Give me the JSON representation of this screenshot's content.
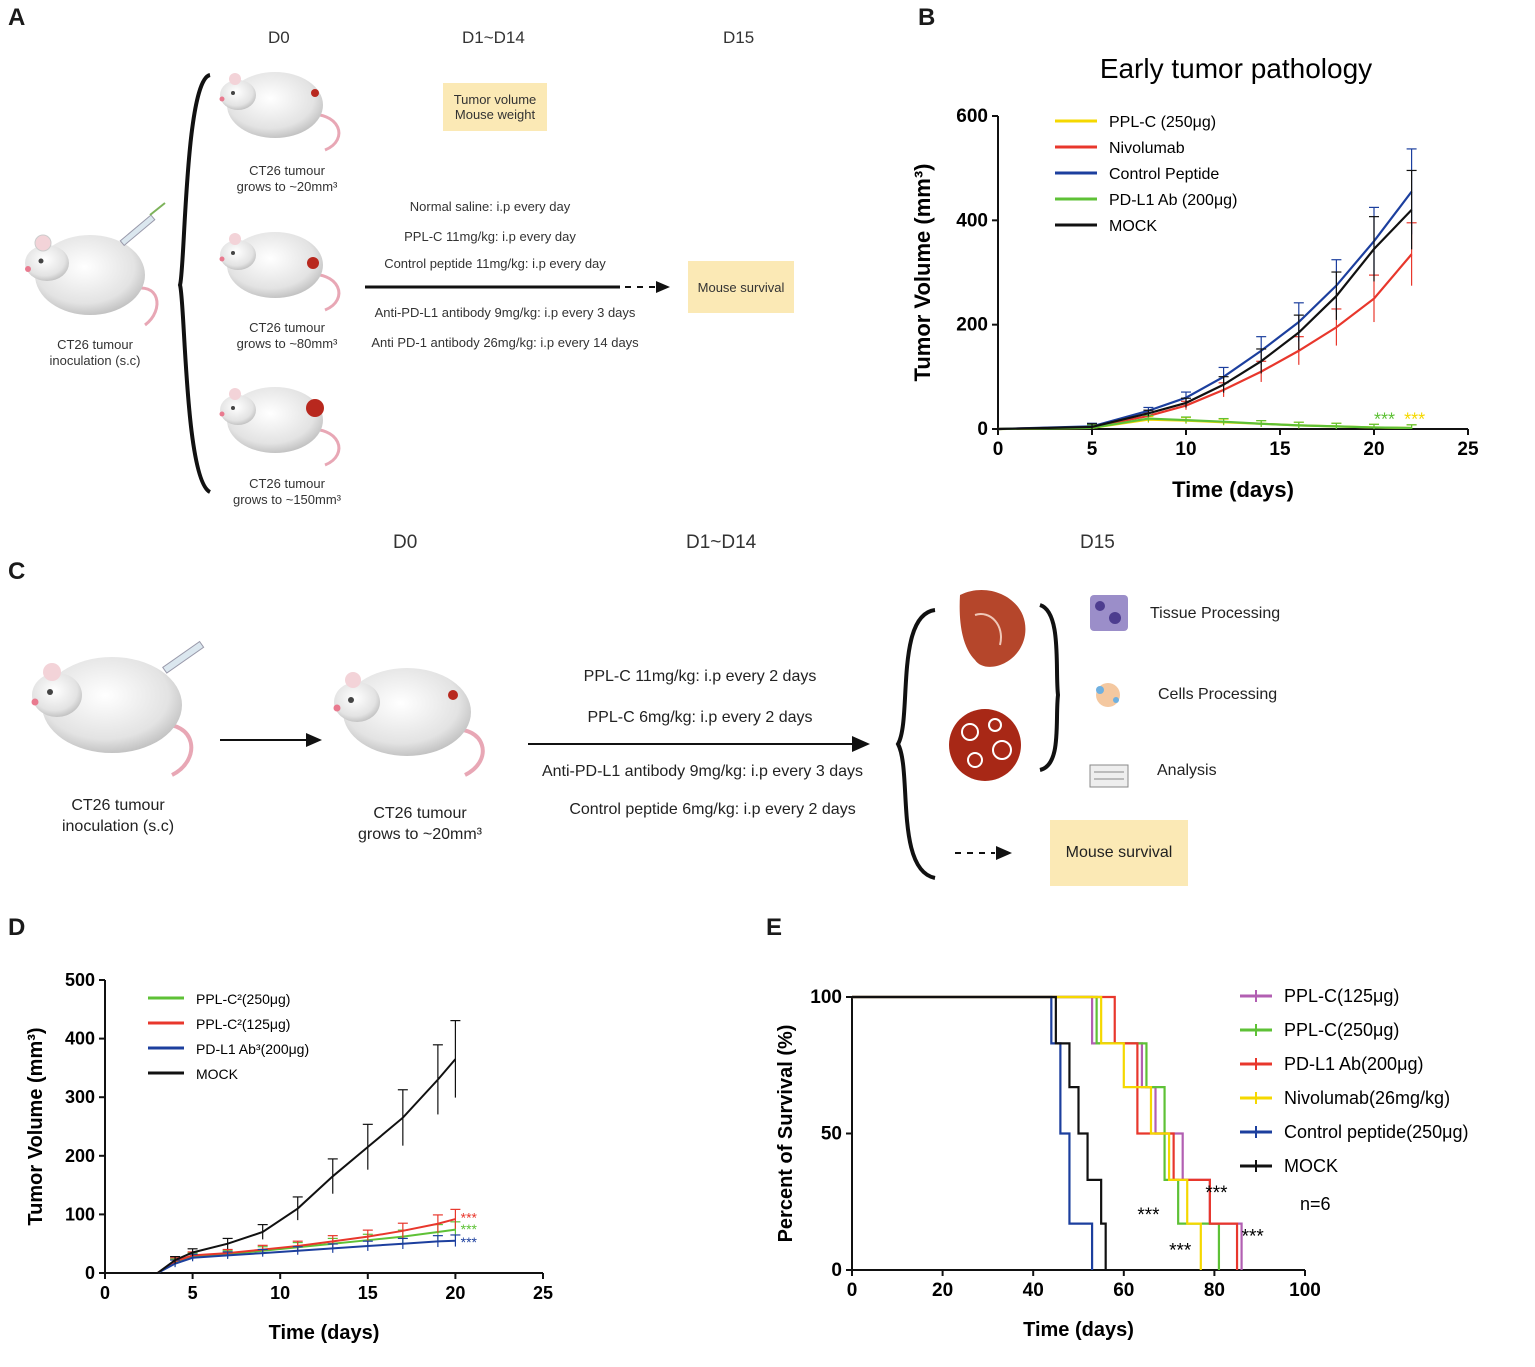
{
  "panelA": {
    "letter": "A",
    "days": [
      "D0",
      "D1~D14",
      "D15"
    ],
    "inoculation": [
      "CT26 tumour",
      "inoculation (s.c)"
    ],
    "groups": [
      [
        "CT26 tumour",
        "grows to ~20mm³"
      ],
      [
        "CT26 tumour",
        "grows to ~80mm³"
      ],
      [
        "CT26 tumour",
        "grows to ~150mm³"
      ]
    ],
    "measure_box": [
      "Tumor volume",
      "Mouse weight"
    ],
    "treatments": [
      "Normal saline: i.p every day",
      "PPL-C 11mg/kg: i.p every day",
      "Control peptide 11mg/kg: i.p every day",
      "Anti-PD-L1 antibody 9mg/kg: i.p every 3 days",
      "Anti PD-1 antibody 26mg/kg: i.p every 14 days"
    ],
    "survival_box": "Mouse survival"
  },
  "panelC": {
    "letter": "C",
    "days": [
      "D0",
      "D1~D14",
      "D15"
    ],
    "inoculation": [
      "CT26 tumour",
      "inoculation (s.c)"
    ],
    "grown": [
      "CT26 tumour",
      "grows to ~20mm³"
    ],
    "treatments": [
      "PPL-C 11mg/kg: i.p every 2 days",
      "PPL-C 6mg/kg: i.p every 2 days",
      "Anti-PD-L1 antibody 9mg/kg: i.p every 3 days",
      "Control peptide 6mg/kg: i.p every 2 days"
    ],
    "processing": [
      "Tissue Processing",
      "Cells Processing",
      "Analysis"
    ],
    "survival_box": "Mouse survival"
  },
  "chart_data": [
    {
      "panel": "B",
      "type": "line",
      "title": "Early tumor pathology",
      "xlabel": "Time (days)",
      "ylabel": "Tumor Volume (mm³)",
      "xlim": [
        0,
        25
      ],
      "ylim": [
        0,
        600
      ],
      "xticks": [
        0,
        5,
        10,
        15,
        20,
        25
      ],
      "yticks": [
        0,
        200,
        400,
        600
      ],
      "legend_position": "top-left",
      "series": [
        {
          "name": "PPL-C (250μg)",
          "color": "#f5d800",
          "x": [
            0,
            5,
            8,
            10,
            12,
            14,
            16,
            18,
            20,
            22
          ],
          "y": [
            0,
            2,
            18,
            16,
            13,
            10,
            7,
            5,
            3,
            2
          ]
        },
        {
          "name": "Nivolumab",
          "color": "#e8372c",
          "x": [
            0,
            5,
            8,
            10,
            12,
            14,
            16,
            18,
            20,
            22
          ],
          "y": [
            0,
            4,
            25,
            45,
            75,
            110,
            150,
            195,
            250,
            335
          ]
        },
        {
          "name": "Control Peptide",
          "color": "#1c3f9e",
          "x": [
            0,
            5,
            8,
            10,
            12,
            14,
            16,
            18,
            20,
            22
          ],
          "y": [
            0,
            5,
            35,
            60,
            100,
            150,
            205,
            275,
            360,
            455
          ]
        },
        {
          "name": "PD-L1 Ab (200μg)",
          "color": "#5ec136",
          "x": [
            0,
            5,
            8,
            10,
            12,
            14,
            16,
            18,
            20,
            22
          ],
          "y": [
            0,
            2,
            20,
            17,
            14,
            10,
            7,
            5,
            3,
            2
          ]
        },
        {
          "name": "MOCK",
          "color": "#111111",
          "x": [
            0,
            5,
            8,
            10,
            12,
            14,
            16,
            18,
            20,
            22
          ],
          "y": [
            0,
            4,
            30,
            50,
            85,
            130,
            185,
            255,
            345,
            420
          ]
        }
      ],
      "annotations": [
        {
          "text": "***",
          "color": "#5ec136"
        },
        {
          "text": "***",
          "color": "#f5d800"
        }
      ]
    },
    {
      "panel": "D",
      "type": "line",
      "title": "",
      "xlabel": "Time (days)",
      "ylabel": "Tumor Volume (mm³)",
      "xlim": [
        0,
        25
      ],
      "ylim": [
        0,
        500
      ],
      "xticks": [
        0,
        5,
        10,
        15,
        20,
        25
      ],
      "yticks": [
        0,
        100,
        200,
        300,
        400,
        500
      ],
      "legend_position": "top-left",
      "series": [
        {
          "name": "PPL-C²(250μg)",
          "color": "#5ec136",
          "x": [
            0,
            3,
            4,
            5,
            7,
            9,
            11,
            13,
            15,
            17,
            19,
            20
          ],
          "y": [
            0,
            0,
            18,
            28,
            32,
            38,
            44,
            50,
            56,
            62,
            70,
            74
          ]
        },
        {
          "name": "PPL-C²(125μg)",
          "color": "#e8372c",
          "x": [
            0,
            3,
            4,
            5,
            7,
            9,
            11,
            13,
            15,
            17,
            19,
            20
          ],
          "y": [
            0,
            0,
            20,
            30,
            34,
            40,
            46,
            54,
            62,
            72,
            84,
            92
          ]
        },
        {
          "name": "PD-L1 Ab³(200μg)",
          "color": "#1c3f9e",
          "x": [
            0,
            3,
            4,
            5,
            7,
            9,
            11,
            13,
            15,
            17,
            19,
            20
          ],
          "y": [
            0,
            0,
            16,
            26,
            30,
            34,
            38,
            42,
            46,
            50,
            54,
            55
          ]
        },
        {
          "name": "MOCK",
          "color": "#111111",
          "x": [
            0,
            3,
            4,
            5,
            7,
            9,
            11,
            13,
            15,
            17,
            19,
            20
          ],
          "y": [
            0,
            0,
            22,
            35,
            50,
            70,
            110,
            165,
            215,
            265,
            330,
            365
          ]
        }
      ],
      "annotations": [
        {
          "text": "***",
          "color": "#e8372c"
        },
        {
          "text": "***",
          "color": "#5ec136"
        },
        {
          "text": "***",
          "color": "#1c3f9e"
        }
      ]
    },
    {
      "panel": "E",
      "type": "step",
      "title": "",
      "xlabel": "Time (days)",
      "ylabel": "Percent of Survival (%)",
      "xlim": [
        0,
        100
      ],
      "ylim": [
        0,
        100
      ],
      "xticks": [
        0,
        20,
        40,
        60,
        80,
        100
      ],
      "yticks": [
        0,
        50,
        100
      ],
      "legend_position": "right",
      "n_note": "n=6",
      "series": [
        {
          "name": "PPL-C(125μg)",
          "color": "#b25fb2",
          "x": [
            0,
            53,
            64,
            67,
            73,
            79,
            86
          ],
          "y": [
            100,
            83,
            67,
            50,
            33,
            17,
            0
          ]
        },
        {
          "name": "PPL-C(250μg)",
          "color": "#5ec136",
          "x": [
            0,
            54,
            65,
            69,
            72,
            76,
            81
          ],
          "y": [
            100,
            83,
            67,
            33,
            17,
            17,
            0
          ]
        },
        {
          "name": "PD-L1 Ab(200μg)",
          "color": "#e8372c",
          "x": [
            0,
            58,
            63,
            71,
            79,
            84,
            85
          ],
          "y": [
            100,
            83,
            50,
            33,
            17,
            17,
            0
          ]
        },
        {
          "name": "Nivolumab(26mg/kg)",
          "color": "#f5d800",
          "x": [
            0,
            55,
            60,
            66,
            70,
            74,
            77
          ],
          "y": [
            100,
            83,
            67,
            50,
            33,
            17,
            0
          ]
        },
        {
          "name": "Control peptide(250μg)",
          "color": "#1c3f9e",
          "x": [
            0,
            44,
            46,
            48,
            51,
            53
          ],
          "y": [
            100,
            83,
            50,
            17,
            17,
            0
          ]
        },
        {
          "name": "MOCK",
          "color": "#111111",
          "x": [
            0,
            45,
            48,
            50,
            52,
            55,
            56
          ],
          "y": [
            100,
            83,
            67,
            50,
            33,
            17,
            0
          ]
        }
      ],
      "annotations": [
        "***",
        "***",
        "***",
        "***"
      ]
    }
  ]
}
